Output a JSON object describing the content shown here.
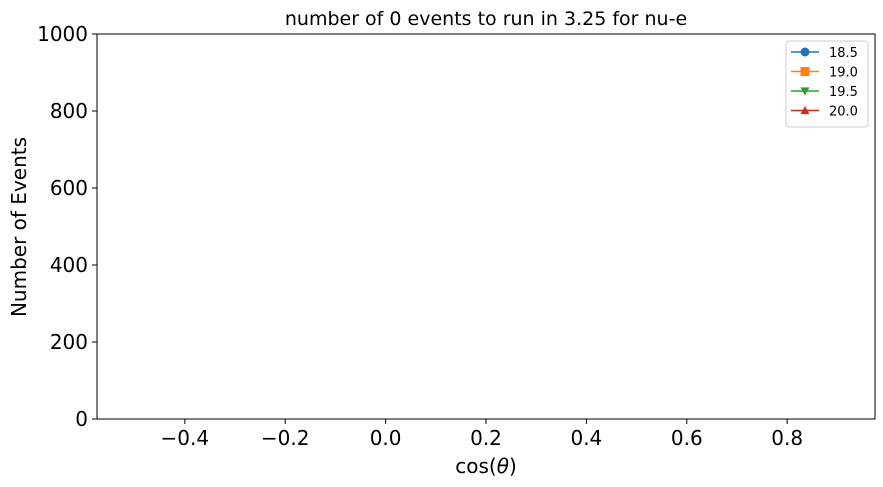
{
  "chart_data": {
    "type": "line",
    "title": "number of 0 events to run in 3.25 for nu-e",
    "xlabel": "cos(θ)",
    "ylabel": "Number of Events",
    "xlim": [
      -0.575,
      0.975
    ],
    "ylim": [
      0,
      1000
    ],
    "x_ticks": [
      -0.4,
      -0.2,
      0.0,
      0.2,
      0.4,
      0.6,
      0.8
    ],
    "x_tick_labels": [
      "−0.4",
      "−0.2",
      "0.0",
      "0.2",
      "0.4",
      "0.6",
      "0.8"
    ],
    "y_ticks": [
      0,
      200,
      400,
      600,
      800,
      1000
    ],
    "y_tick_labels": [
      "0",
      "200",
      "400",
      "600",
      "800",
      "1000"
    ],
    "grid": false,
    "legend_position": "top-right",
    "series": [
      {
        "name": "18.5",
        "color": "#1f77b4",
        "marker": "circle",
        "x": [],
        "y": []
      },
      {
        "name": "19.0",
        "color": "#ff7f0e",
        "marker": "square",
        "x": [],
        "y": []
      },
      {
        "name": "19.5",
        "color": "#2ca02c",
        "marker": "triangle-down",
        "x": [],
        "y": []
      },
      {
        "name": "20.0",
        "color": "#d62728",
        "marker": "triangle-up",
        "x": [],
        "y": []
      }
    ]
  }
}
